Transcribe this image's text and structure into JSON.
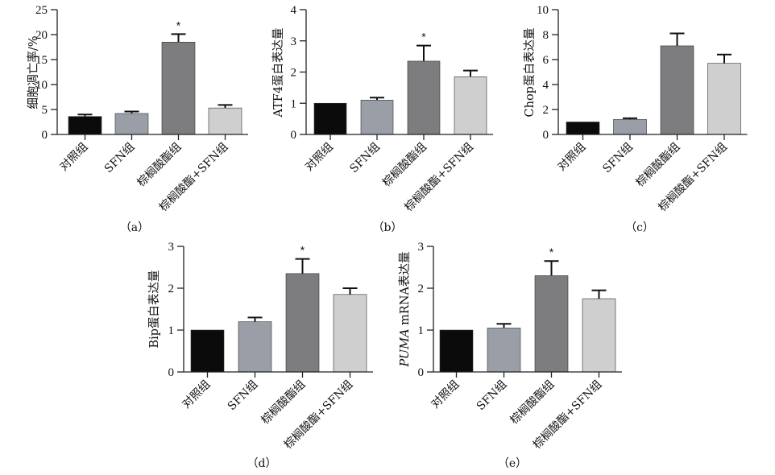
{
  "chart_data": [
    {
      "type": "bar",
      "caption": "（a）",
      "ylabel": "细胞凋亡率/%",
      "ylim": [
        0,
        25
      ],
      "yticks": [
        0,
        5,
        10,
        15,
        20,
        25
      ],
      "categories": [
        "对照组",
        "SFN组",
        "棕榈酸酯组",
        "棕榈酸酯+SFN组"
      ],
      "values": [
        3.6,
        4.2,
        18.5,
        5.3
      ],
      "errors": [
        0.4,
        0.4,
        1.6,
        0.6
      ],
      "significance": [
        "",
        "",
        "*",
        ""
      ]
    },
    {
      "type": "bar",
      "caption": "（b）",
      "ylabel": "ATF4蛋白表达量",
      "ylim": [
        0,
        4
      ],
      "yticks": [
        0,
        1,
        2,
        3,
        4
      ],
      "categories": [
        "对照组",
        "SFN组",
        "棕榈酸酯组",
        "棕榈酸酯+SFN组"
      ],
      "values": [
        1.0,
        1.1,
        2.35,
        1.85
      ],
      "errors": [
        0.0,
        0.08,
        0.5,
        0.2
      ],
      "significance": [
        "",
        "",
        "*",
        ""
      ]
    },
    {
      "type": "bar",
      "caption": "（c）",
      "ylabel": "Chop蛋白表达量",
      "ylim": [
        0,
        10
      ],
      "yticks": [
        0,
        2,
        4,
        6,
        8,
        10
      ],
      "categories": [
        "对照组",
        "SFN组",
        "棕榈酸酯组",
        "棕榈酸酯+SFN组"
      ],
      "values": [
        1.0,
        1.2,
        7.1,
        5.7
      ],
      "errors": [
        0.0,
        0.1,
        1.0,
        0.7
      ],
      "significance": [
        "",
        "",
        "",
        ""
      ]
    },
    {
      "type": "bar",
      "caption": "（d）",
      "ylabel": "Bip蛋白表达量",
      "ylim": [
        0,
        3
      ],
      "yticks": [
        0,
        1,
        2,
        3
      ],
      "categories": [
        "对照组",
        "SFN组",
        "棕榈酸酯组",
        "棕榈酸酯+SFN组"
      ],
      "values": [
        1.0,
        1.2,
        2.35,
        1.85
      ],
      "errors": [
        0.0,
        0.1,
        0.35,
        0.15
      ],
      "significance": [
        "",
        "",
        "*",
        ""
      ]
    },
    {
      "type": "bar",
      "caption": "（e）",
      "ylabel_italic": "PUMA",
      "ylabel": " mRNA表达量",
      "ylim": [
        0,
        3
      ],
      "yticks": [
        0,
        1,
        2,
        3
      ],
      "categories": [
        "对照组",
        "SFN组",
        "棕榈酸酯组",
        "棕榈酸酯+SFN组"
      ],
      "values": [
        1.0,
        1.05,
        2.3,
        1.75
      ],
      "errors": [
        0.0,
        0.1,
        0.35,
        0.2
      ],
      "significance": [
        "",
        "",
        "*",
        ""
      ]
    }
  ],
  "colors": {
    "bar_fills": [
      "#0b0b0b",
      "#9a9ea6",
      "#7d7d80",
      "#cfcfd0"
    ],
    "axis": "#222222"
  }
}
